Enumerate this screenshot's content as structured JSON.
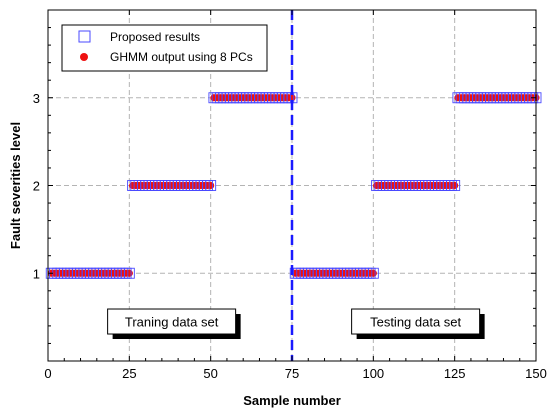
{
  "chart_data": {
    "type": "scatter",
    "title": "",
    "xlabel": "Sample number",
    "ylabel": "Fault severities level",
    "xlim": [
      0,
      150
    ],
    "ylim": [
      0,
      4
    ],
    "xticks": [
      0,
      25,
      50,
      75,
      100,
      125,
      150
    ],
    "yticks": [
      1,
      2,
      3
    ],
    "grid": true,
    "legend_position": "top-left",
    "series": [
      {
        "name": "Proposed results",
        "marker": "hollow-square",
        "color": "#4a4aff",
        "segments": [
          {
            "x_start": 1,
            "x_end": 25,
            "y": 1
          },
          {
            "x_start": 26,
            "x_end": 50,
            "y": 2
          },
          {
            "x_start": 51,
            "x_end": 75,
            "y": 3
          },
          {
            "x_start": 76,
            "x_end": 100,
            "y": 1
          },
          {
            "x_start": 101,
            "x_end": 125,
            "y": 2
          },
          {
            "x_start": 126,
            "x_end": 150,
            "y": 3
          }
        ]
      },
      {
        "name": "GHMM output using 8 PCs",
        "marker": "filled-circle",
        "color": "#ee1111",
        "segments": [
          {
            "x_start": 1,
            "x_end": 25,
            "y": 1
          },
          {
            "x_start": 26,
            "x_end": 50,
            "y": 2
          },
          {
            "x_start": 51,
            "x_end": 75,
            "y": 3
          },
          {
            "x_start": 76,
            "x_end": 100,
            "y": 1
          },
          {
            "x_start": 101,
            "x_end": 125,
            "y": 2
          },
          {
            "x_start": 126,
            "x_end": 150,
            "y": 3
          }
        ]
      }
    ],
    "divider": {
      "x": 75,
      "style": "dashed",
      "color": "#1a1aff"
    },
    "annotations": [
      {
        "text": "Traning data set",
        "x": 38,
        "y": 0.45
      },
      {
        "text": "Testing data set",
        "x": 113,
        "y": 0.45
      }
    ]
  }
}
